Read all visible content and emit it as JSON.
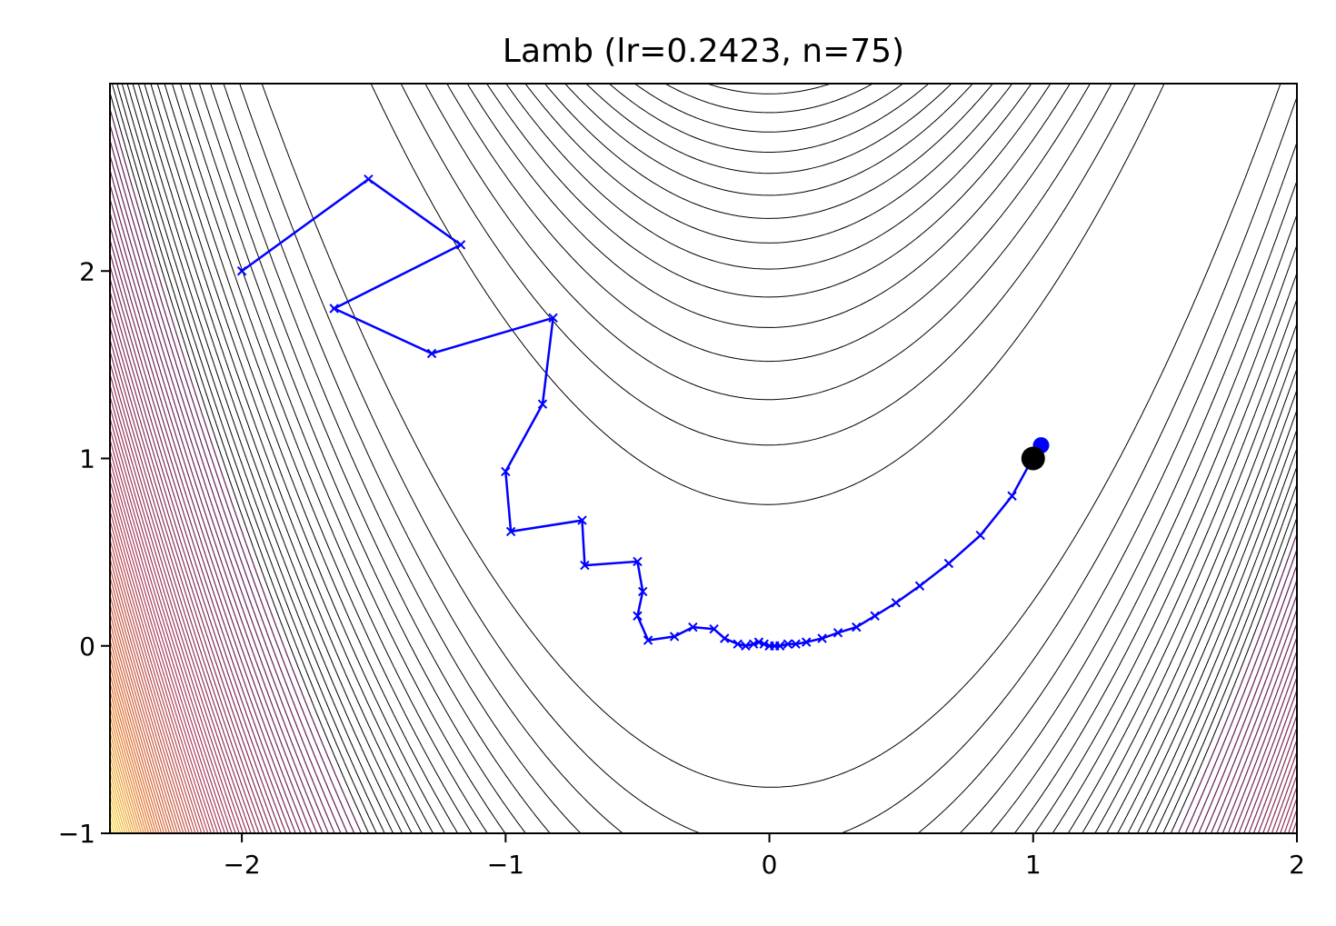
{
  "chart_data": {
    "type": "line",
    "title": "Lamb (lr=0.2423, n=75)",
    "xlabel": "",
    "ylabel": "",
    "xlim": [
      -2.5,
      2.0
    ],
    "ylim": [
      -1.0,
      3.0
    ],
    "grid": false,
    "legend": "none",
    "x_ticks": [
      {
        "value": -2,
        "label": "−2"
      },
      {
        "value": -1,
        "label": "−1"
      },
      {
        "value": 0,
        "label": "0"
      },
      {
        "value": 1,
        "label": "1"
      },
      {
        "value": 2,
        "label": "2"
      }
    ],
    "y_ticks": [
      {
        "value": -1,
        "label": "−1"
      },
      {
        "value": 0,
        "label": "0"
      },
      {
        "value": 1,
        "label": "1"
      },
      {
        "value": 2,
        "label": "2"
      }
    ],
    "background": {
      "type": "contour",
      "function": "rosenbrock",
      "a": 1,
      "b": 100,
      "level_count": 90,
      "colormap": "inferno_r, fading to white near the valley"
    },
    "series": [
      {
        "color": "#0000ff",
        "marker": "x",
        "x": [
          -2.0,
          -1.52,
          -1.17,
          -1.65,
          -1.28,
          -0.82,
          -0.86,
          -1.0,
          -0.98,
          -0.71,
          -0.7,
          -0.5,
          -0.48,
          -0.5,
          -0.46,
          -0.36,
          -0.29,
          -0.21,
          -0.17,
          -0.12,
          -0.09,
          -0.06,
          -0.04,
          -0.02,
          0.0,
          0.02,
          0.04,
          0.07,
          0.1,
          0.14,
          0.2,
          0.26,
          0.33,
          0.4,
          0.48,
          0.57,
          0.68,
          0.8,
          0.92,
          0.99
        ],
        "y": [
          2.0,
          2.49,
          2.14,
          1.8,
          1.56,
          1.75,
          1.29,
          0.93,
          0.61,
          0.67,
          0.43,
          0.45,
          0.29,
          0.16,
          0.03,
          0.05,
          0.1,
          0.09,
          0.04,
          0.01,
          0.0,
          0.01,
          0.02,
          0.01,
          0.0,
          0.0,
          0.0,
          0.01,
          0.01,
          0.02,
          0.04,
          0.07,
          0.1,
          0.16,
          0.23,
          0.32,
          0.44,
          0.59,
          0.8,
          0.98
        ]
      }
    ],
    "final_point": {
      "x": 1.03,
      "y": 1.07,
      "color": "#0000ff"
    },
    "optimum_point": {
      "x": 1.0,
      "y": 1.0,
      "color": "#000000"
    }
  }
}
